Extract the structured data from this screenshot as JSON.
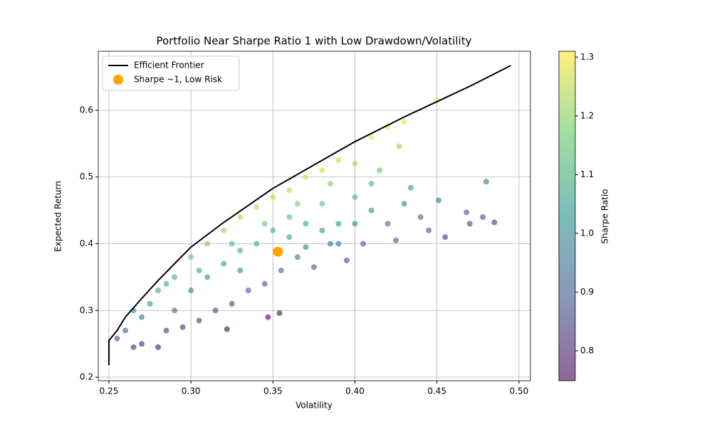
{
  "chart_data": {
    "type": "scatter",
    "title": "Portfolio Near Sharpe Ratio 1 with Low Drawdown/Volatility",
    "xlabel": "Volatility",
    "ylabel": "Expected Return",
    "xlim": [
      0.2435,
      0.507
    ],
    "ylim": [
      0.1947,
      0.6885
    ],
    "xticks": [
      0.25,
      {
        "value": 0.3,
        "label": "0.30"
      },
      0.35,
      {
        "value": 0.4,
        "label": "0.40"
      },
      0.45,
      {
        "value": 0.5,
        "label": "0.50"
      }
    ],
    "yticks": [
      0.2,
      0.3,
      0.4,
      0.5,
      0.6
    ],
    "grid": true,
    "legend": "upper left",
    "portfolios": {
      "alpha": 0.6,
      "x": [
        0.255,
        0.26,
        0.265,
        0.27,
        0.27,
        0.275,
        0.28,
        0.28,
        0.285,
        0.29,
        0.29,
        0.295,
        0.3,
        0.3,
        0.305,
        0.31,
        0.31,
        0.315,
        0.32,
        0.32,
        0.322,
        0.325,
        0.33,
        0.33,
        0.335,
        0.34,
        0.34,
        0.345,
        0.347,
        0.35,
        0.35,
        0.354,
        0.355,
        0.36,
        0.36,
        0.365,
        0.37,
        0.37,
        0.375,
        0.38,
        0.38,
        0.385,
        0.39,
        0.39,
        0.395,
        0.4,
        0.4,
        0.405,
        0.41,
        0.41,
        0.415,
        0.42,
        0.42,
        0.425,
        0.427,
        0.43,
        0.43,
        0.434,
        0.44,
        0.445,
        0.45,
        0.451,
        0.455,
        0.468,
        0.47,
        0.478,
        0.48,
        0.485,
        0.265,
        0.285,
        0.305,
        0.325,
        0.345,
        0.365,
        0.385,
        0.36,
        0.38,
        0.4,
        0.37,
        0.39,
        0.41,
        0.33
      ],
      "values": [
        0.258,
        0.27,
        0.245,
        0.29,
        0.25,
        0.31,
        0.245,
        0.33,
        0.27,
        0.35,
        0.3,
        0.275,
        0.38,
        0.33,
        0.285,
        0.4,
        0.35,
        0.3,
        0.42,
        0.37,
        0.272,
        0.31,
        0.44,
        0.39,
        0.33,
        0.455,
        0.4,
        0.34,
        0.29,
        0.47,
        0.42,
        0.296,
        0.36,
        0.48,
        0.44,
        0.38,
        0.5,
        0.43,
        0.365,
        0.51,
        0.46,
        0.4,
        0.525,
        0.43,
        0.375,
        0.52,
        0.47,
        0.4,
        0.56,
        0.45,
        0.51,
        0.575,
        0.43,
        0.405,
        0.546,
        0.583,
        0.46,
        0.484,
        0.44,
        0.42,
        0.615,
        0.465,
        0.41,
        0.447,
        0.43,
        0.44,
        0.493,
        0.432,
        0.3,
        0.34,
        0.36,
        0.4,
        0.43,
        0.46,
        0.49,
        0.41,
        0.42,
        0.43,
        0.395,
        0.4,
        0.49,
        0.36
      ],
      "sharpe": [
        0.89,
        0.92,
        0.81,
        0.96,
        0.81,
        1.02,
        0.77,
        1.07,
        0.84,
        1.1,
        0.93,
        0.83,
        1.17,
        1.0,
        0.84,
        1.19,
        1.03,
        0.86,
        1.22,
        1.06,
        0.75,
        0.86,
        1.24,
        1.09,
        0.9,
        1.25,
        1.09,
        0.9,
        0.75,
        1.26,
        1.11,
        0.75,
        0.93,
        1.25,
        1.14,
        0.96,
        1.27,
        1.08,
        0.89,
        1.26,
        1.13,
        0.96,
        1.27,
        1.03,
        0.87,
        1.23,
        1.1,
        0.91,
        1.29,
        1.02,
        1.16,
        1.3,
        0.95,
        0.88,
        1.21,
        1.29,
        1.0,
        1.05,
        0.93,
        0.88,
        1.3,
        0.96,
        0.84,
        0.89,
        0.85,
        0.86,
        0.96,
        0.83,
        1.02,
        1.09,
        1.08,
        1.14,
        1.16,
        1.18,
        1.19,
        1.06,
        1.03,
        1.0,
        0.99,
        0.95,
        1.12,
        1.0
      ]
    },
    "series": [
      {
        "name": "Efficient Frontier",
        "type": "line",
        "color": "#000000",
        "x": [
          0.25,
          0.25,
          0.255,
          0.26,
          0.27,
          0.28,
          0.29,
          0.3,
          0.32,
          0.35,
          0.38,
          0.4,
          0.43,
          0.45,
          0.47,
          0.495
        ],
        "values": [
          0.218,
          0.255,
          0.27,
          0.29,
          0.318,
          0.345,
          0.37,
          0.395,
          0.432,
          0.483,
          0.525,
          0.553,
          0.59,
          0.613,
          0.636,
          0.667
        ]
      },
      {
        "name": "Sharpe ~1, Low Risk",
        "type": "scatter",
        "color": "#ffa500",
        "x": [
          0.353
        ],
        "values": [
          0.388
        ]
      }
    ],
    "colorbar": {
      "label": "Sharpe Ratio",
      "colormap": [
        "#440154",
        "#3b528b",
        "#21918c",
        "#5ec962",
        "#fde725"
      ],
      "clim": [
        0.749,
        1.31
      ],
      "ticks": [
        0.8,
        0.9,
        {
          "value": 1,
          "label": "1.0"
        },
        1.1,
        1.2,
        1.3
      ]
    }
  }
}
